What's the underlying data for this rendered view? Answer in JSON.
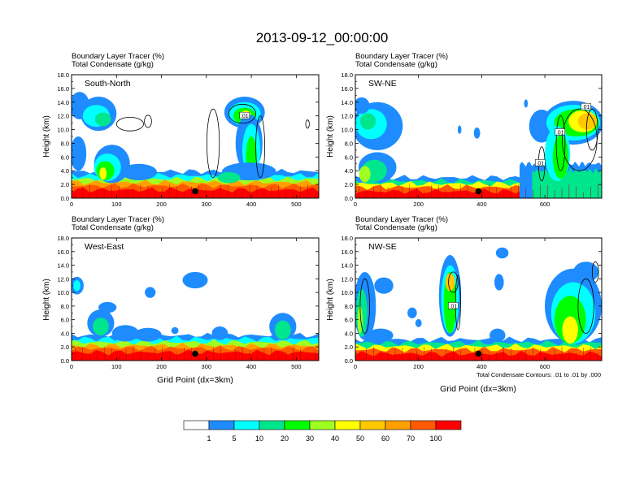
{
  "chart_data": {
    "type": "heatmap",
    "title": "2013-09-12_00:00:00",
    "colorbar": {
      "levels": [
        "1",
        "5",
        "10",
        "20",
        "30",
        "40",
        "50",
        "60",
        "70",
        "100"
      ],
      "colors": [
        "#ffffff",
        "#1e8cff",
        "#00ffff",
        "#00e68c",
        "#00ff00",
        "#a0ff20",
        "#ffff00",
        "#ffc800",
        "#ffa000",
        "#ff5a00",
        "#ff0000"
      ]
    },
    "panels": [
      {
        "label": "South-North",
        "line1": "Boundary Layer Tracer    (%)",
        "line2": "Total Condensate    (g/kg)",
        "ylabel": "Height (km)",
        "xlabel": "",
        "xlim": [
          0,
          550
        ],
        "xticks": [
          "0",
          "100",
          "200",
          "300",
          "400",
          "500"
        ],
        "xtick_values": [
          0,
          100,
          200,
          300,
          400,
          500
        ],
        "ylim": [
          0,
          18
        ],
        "yticks": [
          "0.0",
          "2.0",
          "4.0",
          "6.0",
          "8.0",
          "10.0",
          "12.0",
          "14.0",
          "16.0",
          "18.0"
        ],
        "marker": {
          "x": 275,
          "y": 1.0
        },
        "contour_labels": [
          {
            "text": ".01",
            "x": 385,
            "y": 12.0
          }
        ],
        "footnote": ""
      },
      {
        "label": "SW-NE",
        "line1": "Boundary Layer Tracer    (%)",
        "line2": "Total Condensate    (g/kg)",
        "ylabel": "Height (km)",
        "xlabel": "",
        "xlim": [
          0,
          780
        ],
        "xticks": [
          "0",
          "200",
          "400",
          "600"
        ],
        "xtick_values": [
          0,
          200,
          400,
          600
        ],
        "ylim": [
          0,
          18
        ],
        "yticks": [
          "0.0",
          "2.0",
          "4.0",
          "6.0",
          "8.0",
          "10.0",
          "12.0",
          "14.0",
          "16.0",
          "18.0"
        ],
        "marker": {
          "x": 390,
          "y": 1.0
        },
        "contour_labels": [
          {
            "text": ".01",
            "x": 730,
            "y": 13.3
          },
          {
            "text": ".01",
            "x": 648,
            "y": 9.6
          },
          {
            "text": ".01",
            "x": 585,
            "y": 5.1
          }
        ],
        "footnote": ""
      },
      {
        "label": "West-East",
        "line1": "Boundary Layer Tracer    (%)",
        "line2": "Total Condensate    (g/kg)",
        "ylabel": "Height (km)",
        "xlabel": "Grid Point (dx=3km)",
        "xlim": [
          0,
          550
        ],
        "xticks": [
          "0",
          "100",
          "200",
          "300",
          "400",
          "500"
        ],
        "xtick_values": [
          0,
          100,
          200,
          300,
          400,
          500
        ],
        "ylim": [
          0,
          18
        ],
        "yticks": [
          "0.0",
          "2.0",
          "4.0",
          "6.0",
          "8.0",
          "10.0",
          "12.0",
          "14.0",
          "16.0",
          "18.0"
        ],
        "marker": {
          "x": 275,
          "y": 1.0
        },
        "contour_labels": [],
        "footnote": ""
      },
      {
        "label": "NW-SE",
        "line1": "Boundary Layer Tracer    (%)",
        "line2": "Total Condensate    (g/kg)",
        "ylabel": "Height (km)",
        "xlabel": "Grid Point (dx=3km)",
        "xlim": [
          0,
          780
        ],
        "xticks": [
          "0",
          "200",
          "400",
          "600"
        ],
        "xtick_values": [
          0,
          200,
          400,
          600
        ],
        "ylim": [
          0,
          18
        ],
        "yticks": [
          "0.0",
          "2.0",
          "4.0",
          "6.0",
          "8.0",
          "10.0",
          "12.0",
          "14.0",
          "16.0",
          "18.0"
        ],
        "marker": {
          "x": 390,
          "y": 1.0
        },
        "contour_labels": [
          {
            "text": ".01",
            "x": 310,
            "y": 8.0
          }
        ],
        "footnote": "Total Condensate Contours: .01 to .01 by .000"
      }
    ],
    "fields": [
      {
        "surface": [
          {
            "level": 1,
            "top": 3.9,
            "x0": 0,
            "x1": 550
          },
          {
            "level": 2,
            "top": 3.3,
            "x0": 0,
            "x1": 550
          },
          {
            "level": 5,
            "top": 2.8,
            "x0": 0,
            "x1": 550
          },
          {
            "level": 8,
            "top": 2.3,
            "x0": 0,
            "x1": 550
          },
          {
            "level": 9,
            "top": 1.8,
            "x0": 0,
            "x1": 550
          },
          {
            "level": 10,
            "top": 1.2,
            "x0": 0,
            "x1": 550
          }
        ],
        "blobs": [
          {
            "level": 1,
            "cx": 18,
            "cy": 13.5,
            "rx": 22,
            "ry": 2.0
          },
          {
            "level": 1,
            "cx": 60,
            "cy": 12.3,
            "rx": 40,
            "ry": 2.5
          },
          {
            "level": 2,
            "cx": 55,
            "cy": 12.0,
            "rx": 30,
            "ry": 1.6
          },
          {
            "level": 3,
            "cx": 70,
            "cy": 11.5,
            "rx": 18,
            "ry": 1.0
          },
          {
            "level": 1,
            "cx": 15,
            "cy": 6.5,
            "rx": 18,
            "ry": 2.5
          },
          {
            "level": 1,
            "cx": 90,
            "cy": 5.0,
            "rx": 40,
            "ry": 2.8
          },
          {
            "level": 2,
            "cx": 80,
            "cy": 4.5,
            "rx": 30,
            "ry": 2.0
          },
          {
            "level": 4,
            "cx": 75,
            "cy": 4.0,
            "rx": 20,
            "ry": 1.4
          },
          {
            "level": 6,
            "cx": 70,
            "cy": 3.6,
            "rx": 8,
            "ry": 0.9
          },
          {
            "level": 1,
            "cx": 150,
            "cy": 3.8,
            "rx": 40,
            "ry": 1.2
          },
          {
            "level": 1,
            "cx": 385,
            "cy": 12.5,
            "rx": 45,
            "ry": 2.3
          },
          {
            "level": 2,
            "cx": 385,
            "cy": 12.3,
            "rx": 36,
            "ry": 1.7
          },
          {
            "level": 4,
            "cx": 385,
            "cy": 12.0,
            "rx": 25,
            "ry": 1.2
          },
          {
            "level": 6,
            "cx": 388,
            "cy": 12.0,
            "rx": 12,
            "ry": 0.8
          },
          {
            "level": 1,
            "cx": 395,
            "cy": 8.0,
            "rx": 30,
            "ry": 4.2
          },
          {
            "level": 2,
            "cx": 400,
            "cy": 7.0,
            "rx": 20,
            "ry": 3.8
          },
          {
            "level": 4,
            "cx": 400,
            "cy": 6.0,
            "rx": 12,
            "ry": 3.0
          },
          {
            "level": 1,
            "cx": 395,
            "cy": 3.9,
            "rx": 60,
            "ry": 1.3
          },
          {
            "level": 3,
            "cx": 350,
            "cy": 3.0,
            "rx": 25,
            "ry": 0.8
          }
        ],
        "contours": [
          {
            "cx": 130,
            "cy": 10.8,
            "rx": 30,
            "ry": 1.0
          },
          {
            "cx": 170,
            "cy": 11.2,
            "rx": 8,
            "ry": 0.9
          },
          {
            "cx": 380,
            "cy": 12.3,
            "rx": 30,
            "ry": 1.4
          },
          {
            "cx": 315,
            "cy": 8.0,
            "rx": 14,
            "ry": 5.0
          },
          {
            "cx": 420,
            "cy": 7.5,
            "rx": 10,
            "ry": 4.5
          },
          {
            "cx": 525,
            "cy": 10.8,
            "rx": 4,
            "ry": 0.6
          }
        ]
      },
      {
        "surface": [
          {
            "level": 1,
            "top": 3.0,
            "x0": 0,
            "x1": 780
          },
          {
            "level": 3,
            "top": 2.5,
            "x0": 0,
            "x1": 780
          },
          {
            "level": 6,
            "top": 2.1,
            "x0": 0,
            "x1": 780
          },
          {
            "level": 9,
            "top": 1.6,
            "x0": 0,
            "x1": 780
          },
          {
            "level": 10,
            "top": 1.0,
            "x0": 0,
            "x1": 780
          },
          {
            "level": 1,
            "top": 5.0,
            "x0": 520,
            "x1": 780
          },
          {
            "level": 3,
            "top": 4.0,
            "x0": 560,
            "x1": 780
          }
        ],
        "blobs": [
          {
            "level": 1,
            "cx": 70,
            "cy": 10.5,
            "rx": 80,
            "ry": 3.5
          },
          {
            "level": 2,
            "cx": 50,
            "cy": 10.8,
            "rx": 50,
            "ry": 2.2
          },
          {
            "level": 3,
            "cx": 40,
            "cy": 11.2,
            "rx": 25,
            "ry": 1.2
          },
          {
            "level": 1,
            "cx": 20,
            "cy": 13.5,
            "rx": 25,
            "ry": 1.2
          },
          {
            "level": 1,
            "cx": 70,
            "cy": 4.5,
            "rx": 60,
            "ry": 2.2
          },
          {
            "level": 3,
            "cx": 60,
            "cy": 4.0,
            "rx": 40,
            "ry": 1.6
          },
          {
            "level": 5,
            "cx": 30,
            "cy": 3.5,
            "rx": 18,
            "ry": 1.2
          },
          {
            "level": 1,
            "cx": 330,
            "cy": 10.0,
            "rx": 6,
            "ry": 0.6
          },
          {
            "level": 1,
            "cx": 385,
            "cy": 9.5,
            "rx": 10,
            "ry": 0.8
          },
          {
            "level": 1,
            "cx": 540,
            "cy": 13.8,
            "rx": 6,
            "ry": 0.6
          },
          {
            "level": 1,
            "cx": 590,
            "cy": 10.5,
            "rx": 40,
            "ry": 2.4
          },
          {
            "level": 1,
            "cx": 690,
            "cy": 11.0,
            "rx": 95,
            "ry": 3.2
          },
          {
            "level": 2,
            "cx": 690,
            "cy": 11.0,
            "rx": 85,
            "ry": 2.6
          },
          {
            "level": 4,
            "cx": 700,
            "cy": 11.0,
            "rx": 70,
            "ry": 2.0
          },
          {
            "level": 6,
            "cx": 720,
            "cy": 11.2,
            "rx": 45,
            "ry": 1.6
          },
          {
            "level": 7,
            "cx": 735,
            "cy": 11.2,
            "rx": 30,
            "ry": 1.2
          },
          {
            "level": 2,
            "cx": 640,
            "cy": 6.5,
            "rx": 40,
            "ry": 4.0
          },
          {
            "level": 4,
            "cx": 650,
            "cy": 6.0,
            "rx": 25,
            "ry": 3.2
          }
        ],
        "contours": [
          {
            "cx": 710,
            "cy": 8.5,
            "rx": 55,
            "ry": 4.5
          },
          {
            "cx": 650,
            "cy": 8.0,
            "rx": 14,
            "ry": 4.0
          },
          {
            "cx": 590,
            "cy": 5.0,
            "rx": 10,
            "ry": 2.5
          },
          {
            "cx": 750,
            "cy": 10.0,
            "rx": 18,
            "ry": 3.0
          }
        ]
      },
      {
        "surface": [
          {
            "level": 1,
            "top": 3.7,
            "x0": 0,
            "x1": 550
          },
          {
            "level": 2,
            "top": 3.2,
            "x0": 0,
            "x1": 550
          },
          {
            "level": 5,
            "top": 2.7,
            "x0": 0,
            "x1": 550
          },
          {
            "level": 8,
            "top": 2.2,
            "x0": 0,
            "x1": 550
          },
          {
            "level": 9,
            "top": 1.8,
            "x0": 0,
            "x1": 550
          },
          {
            "level": 10,
            "top": 1.2,
            "x0": 0,
            "x1": 550
          }
        ],
        "blobs": [
          {
            "level": 1,
            "cx": 12,
            "cy": 11.0,
            "rx": 15,
            "ry": 1.3
          },
          {
            "level": 2,
            "cx": 12,
            "cy": 11.0,
            "rx": 8,
            "ry": 0.8
          },
          {
            "level": 1,
            "cx": 65,
            "cy": 5.5,
            "rx": 30,
            "ry": 2.0
          },
          {
            "level": 3,
            "cx": 65,
            "cy": 5.0,
            "rx": 18,
            "ry": 1.3
          },
          {
            "level": 1,
            "cx": 80,
            "cy": 7.8,
            "rx": 20,
            "ry": 0.8
          },
          {
            "level": 1,
            "cx": 175,
            "cy": 10.0,
            "rx": 12,
            "ry": 0.8
          },
          {
            "level": 1,
            "cx": 120,
            "cy": 4.0,
            "rx": 30,
            "ry": 1.2
          },
          {
            "level": 1,
            "cx": 170,
            "cy": 3.8,
            "rx": 30,
            "ry": 1.0
          },
          {
            "level": 1,
            "cx": 230,
            "cy": 4.4,
            "rx": 8,
            "ry": 0.5
          },
          {
            "level": 1,
            "cx": 275,
            "cy": 11.8,
            "rx": 28,
            "ry": 1.2
          },
          {
            "level": 1,
            "cx": 330,
            "cy": 4.0,
            "rx": 18,
            "ry": 1.0
          },
          {
            "level": 1,
            "cx": 470,
            "cy": 5.0,
            "rx": 30,
            "ry": 2.0
          },
          {
            "level": 3,
            "cx": 470,
            "cy": 4.5,
            "rx": 18,
            "ry": 1.4
          }
        ],
        "contours": []
      },
      {
        "surface": [
          {
            "level": 1,
            "top": 3.1,
            "x0": 0,
            "x1": 780
          },
          {
            "level": 3,
            "top": 2.6,
            "x0": 0,
            "x1": 780
          },
          {
            "level": 6,
            "top": 2.1,
            "x0": 0,
            "x1": 780
          },
          {
            "level": 9,
            "top": 1.6,
            "x0": 0,
            "x1": 780
          },
          {
            "level": 10,
            "top": 1.0,
            "x0": 0,
            "x1": 780
          }
        ],
        "blobs": [
          {
            "level": 1,
            "cx": 30,
            "cy": 8.0,
            "rx": 35,
            "ry": 5.0
          },
          {
            "level": 3,
            "cx": 20,
            "cy": 7.0,
            "rx": 18,
            "ry": 3.5
          },
          {
            "level": 5,
            "cx": 15,
            "cy": 6.0,
            "rx": 8,
            "ry": 2.0
          },
          {
            "level": 1,
            "cx": 90,
            "cy": 11.0,
            "rx": 30,
            "ry": 1.2
          },
          {
            "level": 1,
            "cx": 80,
            "cy": 3.7,
            "rx": 40,
            "ry": 1.0
          },
          {
            "level": 1,
            "cx": 300,
            "cy": 9.5,
            "rx": 35,
            "ry": 6.0
          },
          {
            "level": 2,
            "cx": 300,
            "cy": 9.0,
            "rx": 28,
            "ry": 5.0
          },
          {
            "level": 4,
            "cx": 300,
            "cy": 8.5,
            "rx": 20,
            "ry": 4.5
          },
          {
            "level": 7,
            "cx": 300,
            "cy": 11.5,
            "rx": 15,
            "ry": 1.3
          },
          {
            "level": 1,
            "cx": 180,
            "cy": 7.0,
            "rx": 15,
            "ry": 0.8
          },
          {
            "level": 1,
            "cx": 200,
            "cy": 5.5,
            "rx": 10,
            "ry": 0.6
          },
          {
            "level": 1,
            "cx": 450,
            "cy": 3.7,
            "rx": 25,
            "ry": 1.0
          },
          {
            "level": 1,
            "cx": 465,
            "cy": 15.8,
            "rx": 20,
            "ry": 0.8
          },
          {
            "level": 1,
            "cx": 455,
            "cy": 11.5,
            "rx": 15,
            "ry": 1.2
          },
          {
            "level": 1,
            "cx": 690,
            "cy": 8.0,
            "rx": 90,
            "ry": 5.5
          },
          {
            "level": 2,
            "cx": 690,
            "cy": 7.0,
            "rx": 70,
            "ry": 4.5
          },
          {
            "level": 4,
            "cx": 680,
            "cy": 6.0,
            "rx": 50,
            "ry": 3.5
          },
          {
            "level": 6,
            "cx": 680,
            "cy": 4.5,
            "rx": 25,
            "ry": 2.0
          },
          {
            "level": 1,
            "cx": 730,
            "cy": 13.0,
            "rx": 40,
            "ry": 1.5
          }
        ],
        "contours": [
          {
            "cx": 310,
            "cy": 11.5,
            "rx": 15,
            "ry": 1.5
          },
          {
            "cx": 325,
            "cy": 8.5,
            "rx": 8,
            "ry": 4.0
          },
          {
            "cx": 730,
            "cy": 8.0,
            "rx": 25,
            "ry": 4.0
          },
          {
            "cx": 760,
            "cy": 13.0,
            "rx": 10,
            "ry": 1.5
          },
          {
            "cx": 30,
            "cy": 8.0,
            "rx": 15,
            "ry": 4.0
          }
        ]
      }
    ]
  }
}
